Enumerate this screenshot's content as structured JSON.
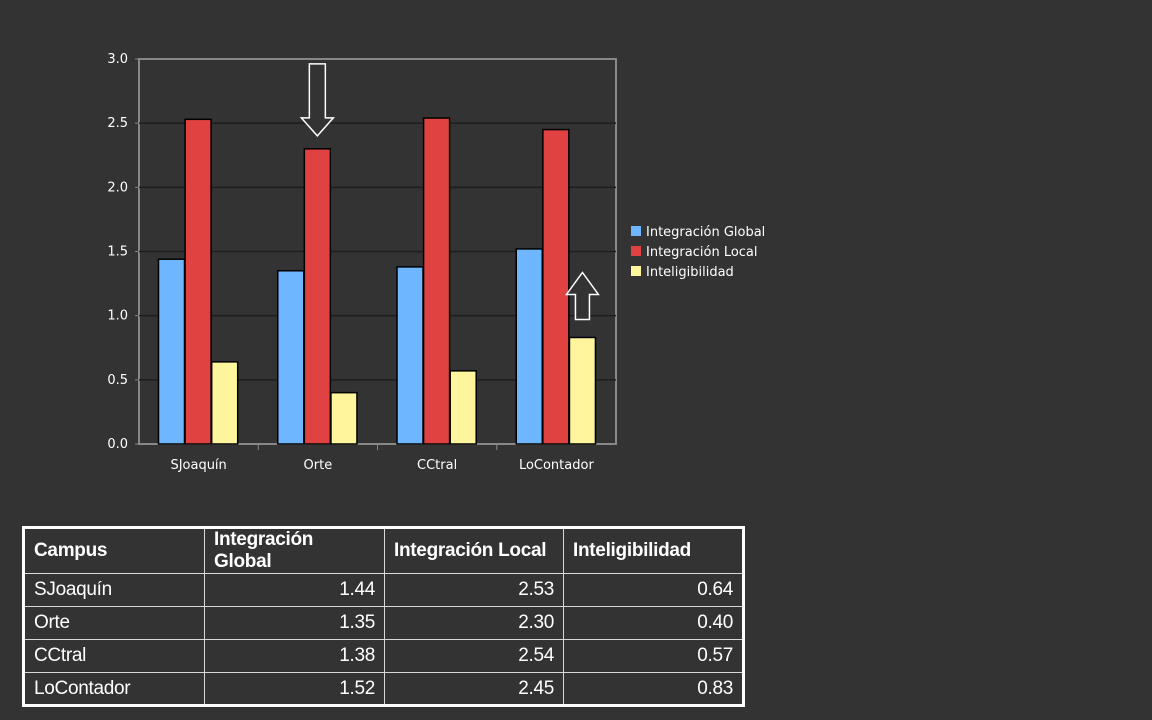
{
  "chart_data": {
    "type": "bar",
    "categories": [
      "SJoaquín",
      "Orte",
      "CCtral",
      "LoContador"
    ],
    "series": [
      {
        "name": "Integración Global",
        "color": "#6eb6ff",
        "values": [
          1.44,
          1.35,
          1.38,
          1.52
        ]
      },
      {
        "name": "Integración Local",
        "color": "#e04141",
        "values": [
          2.53,
          2.3,
          2.54,
          2.45
        ]
      },
      {
        "name": "Inteligibilidad",
        "color": "#fff59d",
        "values": [
          0.64,
          0.4,
          0.57,
          0.83
        ]
      }
    ],
    "ylim": [
      0,
      3.0
    ],
    "yticks": [
      "0.0",
      "0.5",
      "1.0",
      "1.5",
      "2.0",
      "2.5",
      "3.0"
    ],
    "grid": true,
    "legend_position": "right",
    "plot_background": "#333333",
    "annotations": [
      {
        "type": "arrow-down",
        "category": "Orte",
        "series": "Integración Local"
      },
      {
        "type": "arrow-up",
        "category": "LoContador",
        "series": "Inteligibilidad"
      }
    ]
  },
  "table": {
    "headers": [
      "Campus",
      "Integración Global",
      "Integración Local",
      "Inteligibilidad"
    ],
    "rows": [
      [
        "SJoaquín",
        "1.44",
        "2.53",
        "0.64"
      ],
      [
        "Orte",
        "1.35",
        "2.30",
        "0.40"
      ],
      [
        "CCtral",
        "1.38",
        "2.54",
        "0.57"
      ],
      [
        "LoContador",
        "1.52",
        "2.45",
        "0.83"
      ]
    ]
  }
}
